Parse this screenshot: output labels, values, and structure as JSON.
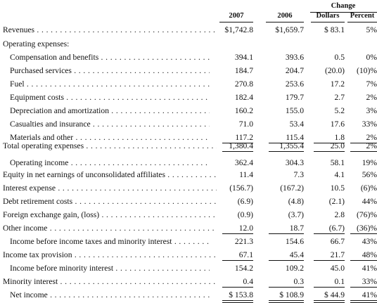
{
  "header": {
    "change": "Change",
    "col_2007": "2007",
    "col_2006": "2006",
    "col_dollars": "Dollars",
    "col_percent": "Percent"
  },
  "rows": [
    {
      "label": "Revenues",
      "v2007": "$1,742.8",
      "v2006": "$1,659.7",
      "dollars": "$ 83.1",
      "percent": "5%"
    },
    {
      "label": "Operating expenses:"
    },
    {
      "label": "Compensation and benefits",
      "v2007": "394.1",
      "v2006": "393.6",
      "dollars": "0.5",
      "percent": "0%"
    },
    {
      "label": "Purchased services",
      "v2007": "184.7",
      "v2006": "204.7",
      "dollars": "(20.0)",
      "percent": "(10)%"
    },
    {
      "label": "Fuel",
      "v2007": "270.8",
      "v2006": "253.6",
      "dollars": "17.2",
      "percent": "7%"
    },
    {
      "label": "Equipment costs",
      "v2007": "182.4",
      "v2006": "179.7",
      "dollars": "2.7",
      "percent": "2%"
    },
    {
      "label": "Depreciation and amortization",
      "v2007": "160.2",
      "v2006": "155.0",
      "dollars": "5.2",
      "percent": "3%"
    },
    {
      "label": "Casualties and insurance",
      "v2007": "71.0",
      "v2006": "53.4",
      "dollars": "17.6",
      "percent": "33%"
    },
    {
      "label": "Materials and other",
      "v2007": "117.2",
      "v2006": "115.4",
      "dollars": "1.8",
      "percent": "2%"
    },
    {
      "label": "Total operating expenses",
      "v2007": "1,380.4",
      "v2006": "1,355.4",
      "dollars": "25.0",
      "percent": "2%"
    },
    {
      "label": "Operating income",
      "v2007": "362.4",
      "v2006": "304.3",
      "dollars": "58.1",
      "percent": "19%"
    },
    {
      "label": "Equity in net earnings of unconsolidated affiliates",
      "v2007": "11.4",
      "v2006": "7.3",
      "dollars": "4.1",
      "percent": "56%"
    },
    {
      "label": "Interest expense",
      "v2007": "(156.7)",
      "v2006": "(167.2)",
      "dollars": "10.5",
      "percent": "(6)%"
    },
    {
      "label": "Debt retirement costs",
      "v2007": "(6.9)",
      "v2006": "(4.8)",
      "dollars": "(2.1)",
      "percent": "44%"
    },
    {
      "label": "Foreign exchange gain, (loss)",
      "v2007": "(0.9)",
      "v2006": "(3.7)",
      "dollars": "2.8",
      "percent": "(76)%"
    },
    {
      "label": "Other income",
      "v2007": "12.0",
      "v2006": "18.7",
      "dollars": "(6.7)",
      "percent": "(36)%"
    },
    {
      "label": "Income before income taxes and minority interest",
      "v2007": "221.3",
      "v2006": "154.6",
      "dollars": "66.7",
      "percent": "43%"
    },
    {
      "label": "Income tax provision",
      "v2007": "67.1",
      "v2006": "45.4",
      "dollars": "21.7",
      "percent": "48%"
    },
    {
      "label": "Income before minority interest",
      "v2007": "154.2",
      "v2006": "109.2",
      "dollars": "45.0",
      "percent": "41%"
    },
    {
      "label": "Minority interest",
      "v2007": "0.4",
      "v2006": "0.3",
      "dollars": "0.1",
      "percent": "33%"
    },
    {
      "label": "Net income",
      "v2007": "$ 153.8",
      "v2006": "$ 108.9",
      "dollars": "$ 44.9",
      "percent": "41%"
    }
  ]
}
